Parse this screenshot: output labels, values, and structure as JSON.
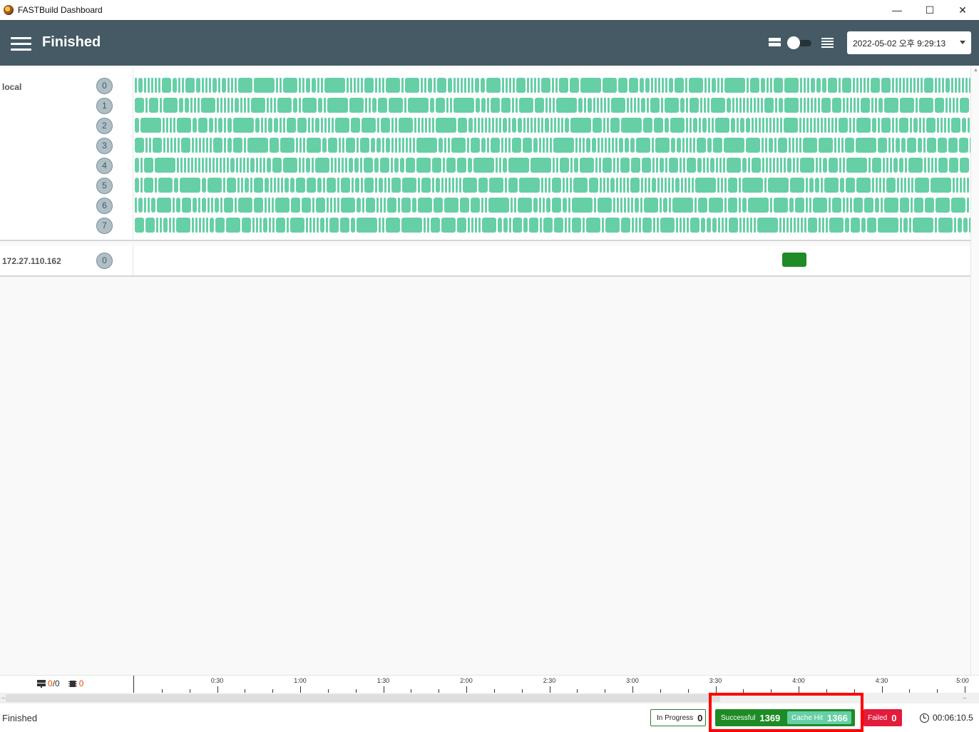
{
  "window": {
    "title": "FASTBuild Dashboard",
    "minimize": "—",
    "maximize": "☐",
    "close": "✕"
  },
  "header": {
    "title": "Finished",
    "date_selected": "2022-05-02 오후 9:29:13"
  },
  "workers": [
    {
      "name": "local",
      "cores": [
        "0",
        "1",
        "2",
        "3",
        "4",
        "5",
        "6",
        "7"
      ]
    },
    {
      "name": "172.27.110.162",
      "cores": [
        "0"
      ]
    }
  ],
  "timeline": {
    "workers_active": "0",
    "workers_total": "0",
    "cores_active": "0",
    "ticks": [
      "0:30",
      "1:00",
      "1:30",
      "2:00",
      "2:30",
      "3:00",
      "3:30",
      "4:00",
      "4:30",
      "5:00"
    ]
  },
  "status": {
    "text": "Finished",
    "in_progress_label": "In Progress",
    "in_progress_count": "0",
    "successful_label": "Successful",
    "successful_count": "1369",
    "cache_hit_label": "Cache Hit",
    "cache_hit_count": "1366",
    "failed_label": "Failed",
    "failed_count": "0",
    "elapsed": "00:06:10.5"
  },
  "colors": {
    "cache_hit": "#66cfa6",
    "success": "#1e8b26",
    "failed": "#e21c3b",
    "appbar": "#455a64"
  }
}
